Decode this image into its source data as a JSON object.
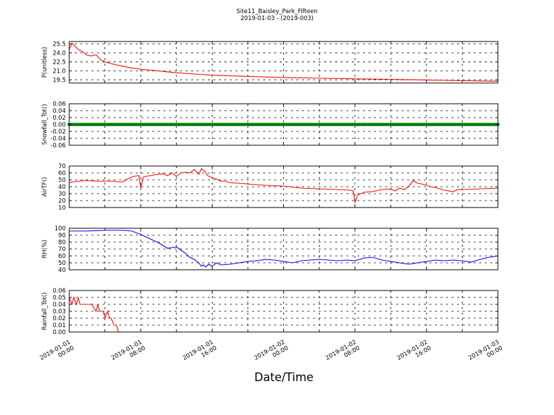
{
  "figure": {
    "title": "Site11_Baisley_Park_Fifteen",
    "subtitle": "2019-01-03 - (2019-003)",
    "xlabel": "Date/Time",
    "xticks": [
      [
        "2019-01-01",
        "00:00"
      ],
      [
        "2019-01-01",
        "08:00"
      ],
      [
        "2019-01-01",
        "16:00"
      ],
      [
        "2019-01-02",
        "00:00"
      ],
      [
        "2019-01-02",
        "08:00"
      ],
      [
        "2019-01-02",
        "16:00"
      ],
      [
        "2019-01-03",
        "00:00"
      ]
    ]
  },
  "chart_data": [
    {
      "type": "line",
      "ylabel": "P(unitless)",
      "ylim": [
        19.0,
        25.9
      ],
      "yticks": [
        "19.5",
        "21.0",
        "22.5",
        "24.0",
        "25.5"
      ],
      "ytick_values": [
        19.5,
        21.0,
        22.5,
        24.0,
        25.5
      ],
      "grid": true,
      "color": "#ff0000",
      "x_hours": [
        0,
        0.3,
        0.6,
        1,
        1.5,
        2,
        2.5,
        3,
        3.5,
        4,
        5,
        6,
        7,
        8,
        10,
        12,
        14,
        16,
        20,
        24,
        28,
        32,
        36,
        40,
        44,
        48
      ],
      "values": [
        24.6,
        25.6,
        25.2,
        24.6,
        24.2,
        23.6,
        23.5,
        23.7,
        22.9,
        22.5,
        22.1,
        21.8,
        21.5,
        21.3,
        21.0,
        20.7,
        20.5,
        20.3,
        20.1,
        19.9,
        19.8,
        19.7,
        19.6,
        19.5,
        19.4,
        19.3
      ]
    },
    {
      "type": "scatter",
      "ylabel": "Snowfall_Tot()",
      "ylim": [
        -0.06,
        0.06
      ],
      "yticks": [
        "-0.06",
        "-0.04",
        "-0.02",
        "0.00",
        "0.02",
        "0.04",
        "0.06"
      ],
      "ytick_values": [
        -0.06,
        -0.04,
        -0.02,
        0.0,
        0.02,
        0.04,
        0.06
      ],
      "grid": true,
      "color": "#008000",
      "x_range_hours": [
        0,
        48
      ],
      "constant_value": 0.0
    },
    {
      "type": "line",
      "ylabel": "AirTF()",
      "ylim": [
        10,
        70
      ],
      "yticks": [
        "10",
        "20",
        "30",
        "40",
        "50",
        "60",
        "70"
      ],
      "ytick_values": [
        10,
        20,
        30,
        40,
        50,
        60,
        70
      ],
      "grid": true,
      "color": "#ff0000",
      "x_hours": [
        0,
        1,
        2,
        3,
        4,
        5,
        5.5,
        6,
        6.5,
        7,
        7.6,
        7.8,
        8.0,
        8.3,
        9,
        10,
        10.5,
        11,
        11.5,
        12,
        12.5,
        13,
        13.5,
        14,
        14.5,
        14.8,
        15.2,
        15.5,
        16,
        16.5,
        17,
        17.5,
        18,
        19,
        20,
        21,
        22,
        24,
        26,
        28,
        30,
        31.5,
        31.8,
        32.0,
        32.3,
        33,
        34,
        35,
        36,
        36.5,
        37,
        37.5,
        38,
        38.5,
        39,
        39.5,
        40,
        40.5,
        41,
        42,
        43,
        43.5,
        44,
        46,
        48
      ],
      "values": [
        46,
        48,
        49,
        48,
        48,
        48,
        47,
        47,
        51,
        54,
        56,
        56,
        38,
        54,
        56,
        58,
        59,
        56,
        60,
        55,
        60,
        61,
        60,
        65,
        58,
        66,
        62,
        56,
        53,
        51,
        48,
        48,
        46,
        45,
        44,
        43,
        42,
        41,
        38,
        37,
        36,
        35,
        34,
        17,
        28,
        32,
        33,
        36,
        37,
        34,
        38,
        36,
        40,
        49,
        45,
        44,
        42,
        40,
        39,
        35,
        33,
        36,
        36,
        37,
        38
      ]
    },
    {
      "type": "line",
      "ylabel": "RH(%)",
      "ylim": [
        40,
        100
      ],
      "yticks": [
        "40",
        "50",
        "60",
        "70",
        "80",
        "90",
        "100"
      ],
      "ytick_values": [
        40,
        50,
        60,
        70,
        80,
        90,
        100
      ],
      "grid": true,
      "color": "#0000ff",
      "x_hours": [
        0,
        2,
        4,
        6,
        7,
        8,
        9,
        10,
        11,
        12,
        13,
        13.5,
        14,
        14.5,
        14.8,
        15,
        15.3,
        15.6,
        16,
        16.5,
        17,
        18,
        19,
        20,
        21,
        22,
        23,
        24,
        25,
        26,
        27,
        28,
        29,
        30,
        31,
        32,
        33,
        34,
        35,
        36,
        37,
        38,
        39,
        40,
        41,
        42,
        43,
        44,
        45,
        46,
        47,
        48
      ],
      "values": [
        96,
        96,
        97,
        97,
        96,
        91,
        85,
        79,
        71,
        73,
        64,
        58,
        55,
        50,
        45,
        47,
        44,
        48,
        45,
        50,
        47,
        48,
        50,
        52,
        53,
        55,
        54,
        52,
        50,
        53,
        54,
        55,
        54,
        53,
        54,
        53,
        57,
        58,
        54,
        52,
        50,
        48,
        50,
        52,
        54,
        53,
        54,
        53,
        51,
        55,
        58,
        60
      ]
    },
    {
      "type": "line",
      "ylabel": "Rainfall_Tot()",
      "ylim": [
        0.0,
        0.06
      ],
      "yticks": [
        "0.00",
        "0.01",
        "0.02",
        "0.03",
        "0.04",
        "0.05",
        "0.06"
      ],
      "ytick_values": [
        0.0,
        0.01,
        0.02,
        0.03,
        0.04,
        0.05,
        0.06
      ],
      "grid": true,
      "color": "#ff0000",
      "x_hours": [
        0,
        0.3,
        0.5,
        0.8,
        1,
        1.2,
        1.5,
        2,
        2.5,
        3,
        3.2,
        3.4,
        3.6,
        3.8,
        4,
        4.3,
        4.5,
        4.7,
        5,
        5.3,
        5.5,
        5.8,
        6,
        48
      ],
      "values": [
        0.05,
        0.04,
        0.05,
        0.04,
        0.05,
        0.04,
        0.04,
        0.04,
        0.04,
        0.03,
        0.04,
        0.03,
        0.03,
        0.03,
        0.02,
        0.03,
        0.02,
        0.02,
        0.01,
        0.01,
        0.0,
        0.0,
        0.0,
        0.0
      ]
    }
  ]
}
